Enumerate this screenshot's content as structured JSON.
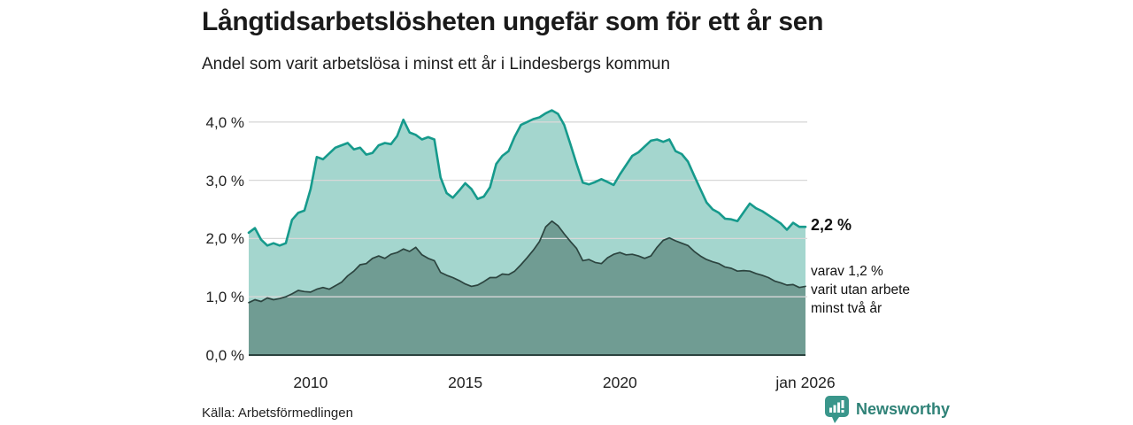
{
  "header": {
    "title": "Långtidsarbetslösheten ungefär som för ett år sen",
    "subtitle": "Andel som varit arbetslösa i minst ett år i Lindesbergs kommun"
  },
  "annotations": {
    "latest_total": "2,2 %",
    "secondary_lines": [
      "varav 1,2 %",
      "varit utan arbete",
      "minst två år"
    ]
  },
  "footer": {
    "source": "Källa: Arbetsförmedlingen",
    "brand": "Newsworthy"
  },
  "colors": {
    "background": "#ffffff",
    "gridline": "#d8d8d8",
    "axis": "#2b423e",
    "brand_teal": "#2f8277",
    "logo_fill": "#3a968b"
  },
  "chart_data": {
    "type": "area",
    "title": "Långtidsarbetslösheten ungefär som för ett år sen",
    "subtitle": "Andel som varit arbetslösa i minst ett år i Lindesbergs kommun",
    "xlabel": "",
    "ylabel": "",
    "xlim": [
      2008,
      2026
    ],
    "ylim": [
      0,
      4.35
    ],
    "grid": "horizontal",
    "legend": "none, end-of-line annotations instead",
    "x_start": 2008.0,
    "x_step": 0.2,
    "y_ticks": [
      {
        "value": 0,
        "label": "0,0 %"
      },
      {
        "value": 1,
        "label": "1,0 %"
      },
      {
        "value": 2,
        "label": "2,0 %"
      },
      {
        "value": 3,
        "label": "3,0 %"
      },
      {
        "value": 4,
        "label": "4,0 %"
      }
    ],
    "x_ticks": [
      {
        "value": 2010,
        "label": "2010"
      },
      {
        "value": 2015,
        "label": "2015"
      },
      {
        "value": 2020,
        "label": "2020"
      },
      {
        "value": 2026,
        "label": "jan 2026"
      }
    ],
    "series": [
      {
        "name": "Andel arbetslösa minst ett år",
        "end_value": 2.2,
        "end_label": "2,2 %",
        "fill": "#a4d6ce",
        "stroke": "#169a8c",
        "values": [
          2.1,
          2.18,
          1.98,
          1.88,
          1.92,
          1.88,
          1.92,
          2.32,
          2.44,
          2.48,
          2.85,
          3.4,
          3.36,
          3.46,
          3.56,
          3.6,
          3.64,
          3.53,
          3.56,
          3.44,
          3.47,
          3.6,
          3.64,
          3.62,
          3.76,
          4.04,
          3.82,
          3.78,
          3.7,
          3.74,
          3.7,
          3.05,
          2.78,
          2.7,
          2.82,
          2.95,
          2.85,
          2.68,
          2.72,
          2.88,
          3.28,
          3.42,
          3.5,
          3.75,
          3.95,
          4.0,
          4.05,
          4.08,
          4.15,
          4.2,
          4.14,
          3.95,
          3.62,
          3.28,
          2.96,
          2.93,
          2.97,
          3.02,
          2.97,
          2.92,
          3.1,
          3.26,
          3.42,
          3.48,
          3.58,
          3.68,
          3.7,
          3.66,
          3.7,
          3.5,
          3.45,
          3.32,
          3.08,
          2.85,
          2.62,
          2.5,
          2.44,
          2.34,
          2.33,
          2.3,
          2.45,
          2.6,
          2.52,
          2.47,
          2.4,
          2.33,
          2.26,
          2.15,
          2.27,
          2.2,
          2.2
        ]
      },
      {
        "name": "Andel arbetslösa minst två år",
        "end_value": 1.2,
        "end_label": "varav 1,2 % varit utan arbete minst två år",
        "fill": "#709c93",
        "stroke": "#2c443f",
        "values": [
          0.9,
          0.95,
          0.92,
          0.98,
          0.95,
          0.97,
          1.0,
          1.05,
          1.11,
          1.09,
          1.08,
          1.13,
          1.16,
          1.13,
          1.19,
          1.25,
          1.36,
          1.44,
          1.55,
          1.57,
          1.66,
          1.7,
          1.66,
          1.73,
          1.76,
          1.82,
          1.78,
          1.85,
          1.72,
          1.66,
          1.62,
          1.42,
          1.37,
          1.33,
          1.28,
          1.22,
          1.18,
          1.2,
          1.26,
          1.33,
          1.33,
          1.39,
          1.38,
          1.44,
          1.55,
          1.67,
          1.8,
          1.95,
          2.2,
          2.3,
          2.22,
          2.08,
          1.95,
          1.83,
          1.62,
          1.64,
          1.59,
          1.57,
          1.67,
          1.73,
          1.76,
          1.72,
          1.73,
          1.7,
          1.66,
          1.7,
          1.85,
          1.97,
          2.01,
          1.96,
          1.92,
          1.88,
          1.78,
          1.7,
          1.64,
          1.6,
          1.57,
          1.51,
          1.49,
          1.44,
          1.45,
          1.44,
          1.4,
          1.37,
          1.33,
          1.27,
          1.24,
          1.2,
          1.21,
          1.16,
          1.18
        ]
      }
    ]
  }
}
